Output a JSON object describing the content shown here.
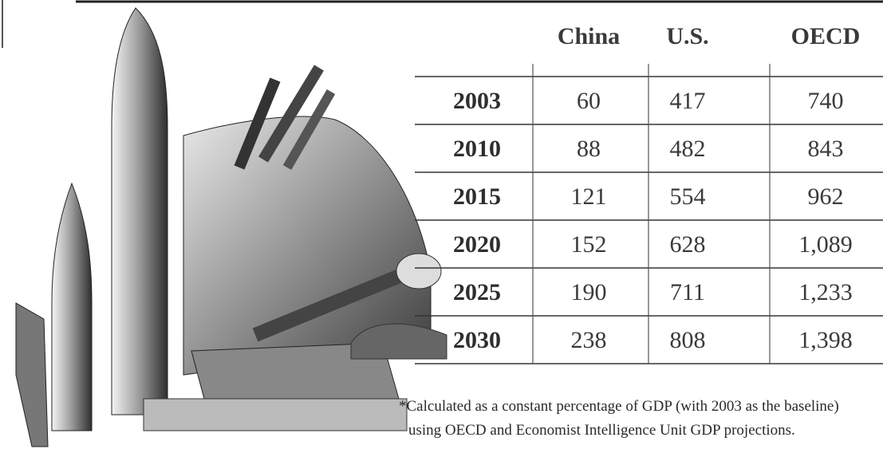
{
  "table": {
    "header": [
      "China",
      "U.S.",
      "OECD"
    ],
    "rows": [
      [
        "2003",
        "60",
        "417",
        "740"
      ],
      [
        "2010",
        "88",
        "482",
        "843"
      ],
      [
        "2015",
        "121",
        "554",
        "962"
      ],
      [
        "2020",
        "152",
        "628",
        "1,089"
      ],
      [
        "2025",
        "190",
        "711",
        "1,233"
      ],
      [
        "2030",
        "238",
        "808",
        "1,398"
      ]
    ]
  },
  "footnote": [
    "*Calculated as a constant percentage of GDP (with 2003 as the baseline)",
    "using OECD and Economist Intelligence Unit GDP projections."
  ]
}
